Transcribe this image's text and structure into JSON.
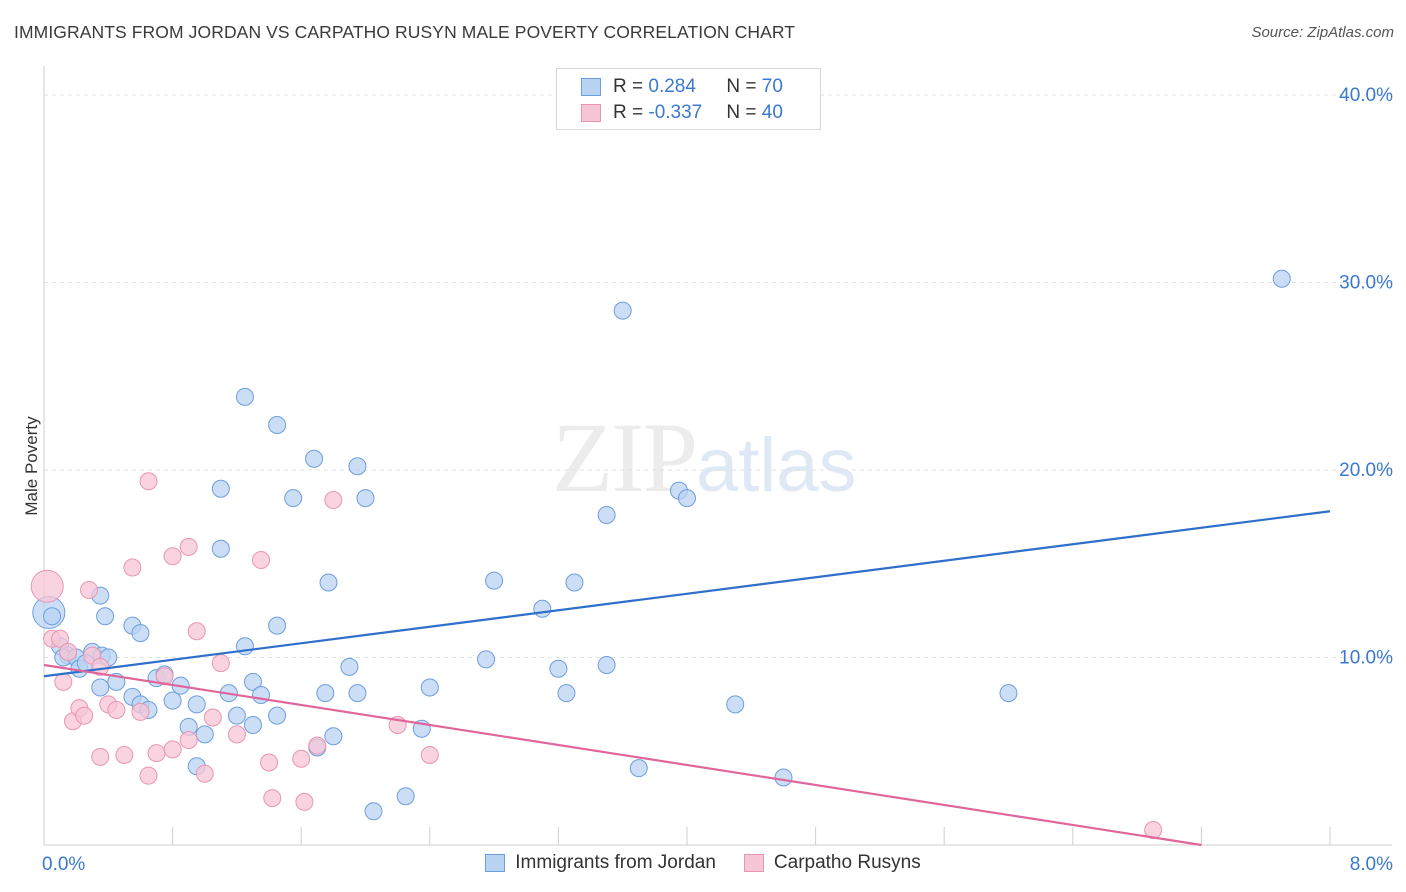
{
  "title": "IMMIGRANTS FROM JORDAN VS CARPATHO RUSYN MALE POVERTY CORRELATION CHART",
  "source": "Source: ZipAtlas.com",
  "watermark": {
    "zip": "ZIP",
    "atlas": "atlas"
  },
  "legend": {
    "series1": {
      "r_label": "R = ",
      "r_value": "0.284",
      "n_label": "N = ",
      "n_value": "70"
    },
    "series2": {
      "r_label": "R = ",
      "r_value": "-0.337",
      "n_label": "N = ",
      "n_value": "40"
    }
  },
  "colors": {
    "blue_fill": "#b9d3f3",
    "blue_stroke": "#6d9fdd",
    "blue_line": "#2f6fcc",
    "pink_fill": "#f7c6d6",
    "pink_stroke": "#e996b2",
    "pink_line": "#e0659a",
    "tick_text": "#3b78d0"
  },
  "chart_data": {
    "type": "scatter",
    "title": "IMMIGRANTS FROM JORDAN VS CARPATHO RUSYN MALE POVERTY CORRELATION CHART",
    "xlabel": "",
    "ylabel": "Male Poverty",
    "xlim": [
      0.0,
      8.0
    ],
    "ylim": [
      0.0,
      40.0
    ],
    "x_tick_labels": [
      "0.0%",
      "8.0%"
    ],
    "y_ticks": [
      10,
      20,
      30,
      40
    ],
    "y_tick_labels": [
      "10.0%",
      "20.0%",
      "30.0%",
      "40.0%"
    ],
    "series": [
      {
        "name": "Immigrants from Jordan",
        "color": "#6d9fdd",
        "trend": {
          "x": [
            0.0,
            8.0
          ],
          "y": [
            9.0,
            17.8
          ]
        },
        "points": [
          [
            0.03,
            12.4
          ],
          [
            0.05,
            12.2
          ],
          [
            0.1,
            10.6
          ],
          [
            0.15,
            10.1
          ],
          [
            0.12,
            10.0
          ],
          [
            0.2,
            10.0
          ],
          [
            0.3,
            10.3
          ],
          [
            0.35,
            13.3
          ],
          [
            0.38,
            12.2
          ],
          [
            0.22,
            9.4
          ],
          [
            0.26,
            9.7
          ],
          [
            0.36,
            10.1
          ],
          [
            0.4,
            10.0
          ],
          [
            0.55,
            11.7
          ],
          [
            0.6,
            11.3
          ],
          [
            0.35,
            8.4
          ],
          [
            0.45,
            8.7
          ],
          [
            0.55,
            7.9
          ],
          [
            0.6,
            7.5
          ],
          [
            0.65,
            7.2
          ],
          [
            0.7,
            8.9
          ],
          [
            0.75,
            9.1
          ],
          [
            0.8,
            7.7
          ],
          [
            0.85,
            8.5
          ],
          [
            0.95,
            7.5
          ],
          [
            0.9,
            6.3
          ],
          [
            1.0,
            5.9
          ],
          [
            0.95,
            4.2
          ],
          [
            1.15,
            8.1
          ],
          [
            1.2,
            6.9
          ],
          [
            1.3,
            8.7
          ],
          [
            1.35,
            8.0
          ],
          [
            1.3,
            6.4
          ],
          [
            1.45,
            6.9
          ],
          [
            1.25,
            10.6
          ],
          [
            1.45,
            11.7
          ],
          [
            1.1,
            15.8
          ],
          [
            1.1,
            19.0
          ],
          [
            1.25,
            23.9
          ],
          [
            1.45,
            22.4
          ],
          [
            1.55,
            18.5
          ],
          [
            1.68,
            20.6
          ],
          [
            1.77,
            14.0
          ],
          [
            1.95,
            20.2
          ],
          [
            2.0,
            18.5
          ],
          [
            1.75,
            8.1
          ],
          [
            1.95,
            8.1
          ],
          [
            1.9,
            9.5
          ],
          [
            1.8,
            5.8
          ],
          [
            1.7,
            5.2
          ],
          [
            2.05,
            1.8
          ],
          [
            2.4,
            8.4
          ],
          [
            2.35,
            6.2
          ],
          [
            2.25,
            2.6
          ],
          [
            2.75,
            9.9
          ],
          [
            2.8,
            14.1
          ],
          [
            3.1,
            12.6
          ],
          [
            3.2,
            9.4
          ],
          [
            3.25,
            8.1
          ],
          [
            3.3,
            14.0
          ],
          [
            3.5,
            9.6
          ],
          [
            3.5,
            17.6
          ],
          [
            3.6,
            28.5
          ],
          [
            3.7,
            4.1
          ],
          [
            3.95,
            18.9
          ],
          [
            4.0,
            18.5
          ],
          [
            4.3,
            7.5
          ],
          [
            4.6,
            3.6
          ],
          [
            6.0,
            8.1
          ],
          [
            7.7,
            30.2
          ]
        ]
      },
      {
        "name": "Carpatho Rusyns",
        "color": "#e996b2",
        "trend": {
          "x": [
            0.0,
            7.2
          ],
          "y": [
            9.6,
            0.0
          ]
        },
        "points": [
          [
            0.02,
            13.8
          ],
          [
            0.05,
            11.0
          ],
          [
            0.1,
            11.0
          ],
          [
            0.12,
            8.7
          ],
          [
            0.15,
            10.3
          ],
          [
            0.18,
            6.6
          ],
          [
            0.22,
            7.3
          ],
          [
            0.25,
            6.9
          ],
          [
            0.3,
            10.1
          ],
          [
            0.28,
            13.6
          ],
          [
            0.35,
            9.5
          ],
          [
            0.35,
            4.7
          ],
          [
            0.4,
            7.5
          ],
          [
            0.45,
            7.2
          ],
          [
            0.5,
            4.8
          ],
          [
            0.55,
            14.8
          ],
          [
            0.6,
            7.1
          ],
          [
            0.65,
            3.7
          ],
          [
            0.65,
            19.4
          ],
          [
            0.7,
            4.9
          ],
          [
            0.75,
            9.0
          ],
          [
            0.8,
            5.1
          ],
          [
            0.8,
            15.4
          ],
          [
            0.9,
            15.9
          ],
          [
            0.9,
            5.6
          ],
          [
            0.95,
            11.4
          ],
          [
            1.0,
            3.8
          ],
          [
            1.05,
            6.8
          ],
          [
            1.1,
            9.7
          ],
          [
            1.2,
            5.9
          ],
          [
            1.35,
            15.2
          ],
          [
            1.4,
            4.4
          ],
          [
            1.42,
            2.5
          ],
          [
            1.6,
            4.6
          ],
          [
            1.62,
            2.3
          ],
          [
            1.7,
            5.3
          ],
          [
            1.8,
            18.4
          ],
          [
            2.2,
            6.4
          ],
          [
            2.4,
            4.8
          ],
          [
            6.9,
            0.8
          ]
        ]
      }
    ],
    "legend": [
      "Immigrants from Jordan",
      "Carpatho Rusyns"
    ]
  }
}
